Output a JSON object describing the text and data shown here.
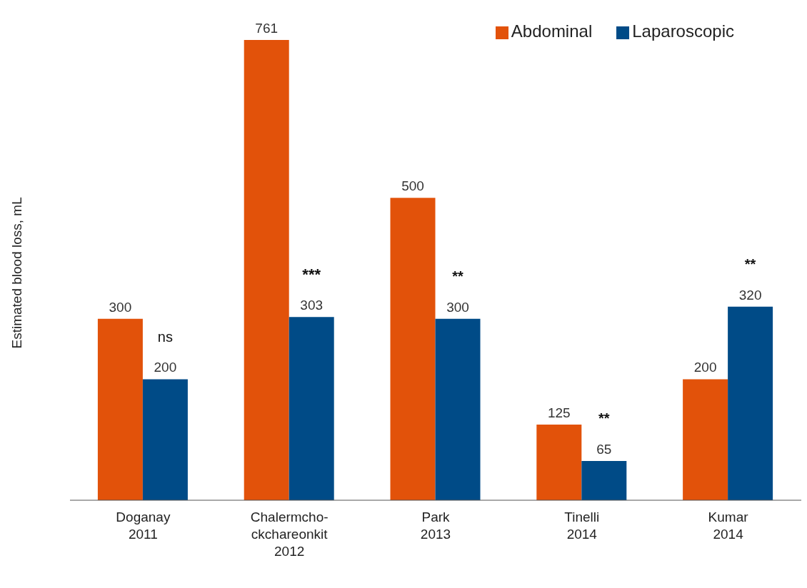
{
  "chart_data": {
    "type": "bar",
    "ylabel": "Estimated blood loss, mL",
    "categories": [
      "Doganay\n2011",
      "Chalermcho-\nckchareonkit\n2012",
      "Park\n2013",
      "Tinelli\n2014",
      "Kumar\n2014"
    ],
    "series": [
      {
        "name": "Abdominal",
        "color": "#e2520a",
        "values": [
          300,
          761,
          500,
          125,
          200
        ]
      },
      {
        "name": "Laparoscopic",
        "color": "#004b87",
        "values": [
          200,
          303,
          300,
          65,
          320
        ]
      }
    ],
    "data_labels": true,
    "legend": "top right",
    "grid": false,
    "annotations": [
      {
        "text": "ns",
        "x": "Doganay\n2011",
        "y": 200
      },
      {
        "text": "***",
        "x": "Chalermcho-\nckchareonkit\n2012",
        "y": 303
      },
      {
        "text": "**",
        "x": "Park\n2013",
        "y": 300
      },
      {
        "text": "**",
        "x": "Tinelli\n2014",
        "y": 65
      },
      {
        "text": "**",
        "x": "Kumar\n2014",
        "y": 320
      }
    ]
  }
}
